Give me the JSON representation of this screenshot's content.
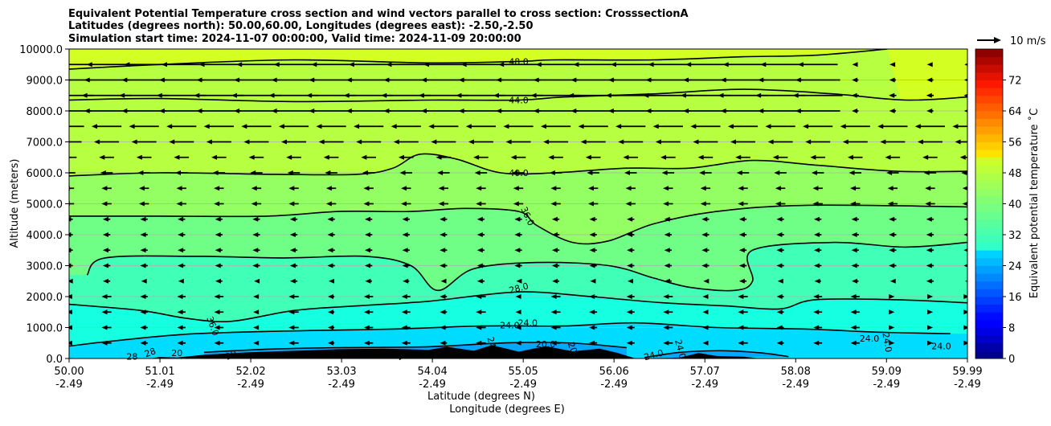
{
  "chart_data": {
    "type": "contour",
    "title": [
      "Equivalent Potential Temperature cross section and wind vectors parallel to cross section: CrosssectionA",
      "Latitudes (degrees north): 50.00,60.00, Longitudes (degrees east): -2.50,-2.50",
      "Simulation start time: 2024-11-07 00:00:00, Valid time: 2024-11-09 20:00:00"
    ],
    "xlabel": "Latitude (degrees N)",
    "xlabel2": "Longitude (degrees E)",
    "ylabel": "Altitude (meters)",
    "xlim": [
      50.0,
      59.99
    ],
    "ylim": [
      0,
      10000
    ],
    "x_ticks": [
      {
        "lat": "50.00",
        "lon": "-2.49",
        "v": 50.0
      },
      {
        "lat": "51.01",
        "lon": "-2.49",
        "v": 51.01
      },
      {
        "lat": "52.02",
        "lon": "-2.49",
        "v": 52.02
      },
      {
        "lat": "53.03",
        "lon": "-2.49",
        "v": 53.03
      },
      {
        "lat": "54.04",
        "lon": "-2.49",
        "v": 54.04
      },
      {
        "lat": "55.05",
        "lon": "-2.49",
        "v": 55.05
      },
      {
        "lat": "56.06",
        "lon": "-2.49",
        "v": 56.06
      },
      {
        "lat": "57.07",
        "lon": "-2.49",
        "v": 57.07
      },
      {
        "lat": "58.08",
        "lon": "-2.49",
        "v": 58.08
      },
      {
        "lat": "59.09",
        "lon": "-2.49",
        "v": 59.09
      },
      {
        "lat": "59.99",
        "lon": "-2.49",
        "v": 59.99
      }
    ],
    "y_ticks": [
      {
        "label": "0.0",
        "v": 0
      },
      {
        "label": "1000.0",
        "v": 1000
      },
      {
        "label": "2000.0",
        "v": 2000
      },
      {
        "label": "3000.0",
        "v": 3000
      },
      {
        "label": "4000.0",
        "v": 4000
      },
      {
        "label": "5000.0",
        "v": 5000
      },
      {
        "label": "6000.0",
        "v": 6000
      },
      {
        "label": "7000.0",
        "v": 7000
      },
      {
        "label": "8000.0",
        "v": 8000
      },
      {
        "label": "9000.0",
        "v": 9000
      },
      {
        "label": "10000.0",
        "v": 10000
      }
    ],
    "grid": "horizontal",
    "colorbar": {
      "label": "Equivalent potential temperature ˚C",
      "range": [
        0,
        80
      ],
      "ticks": [
        {
          "label": "0",
          "v": 0
        },
        {
          "label": "8",
          "v": 8
        },
        {
          "label": "16",
          "v": 16
        },
        {
          "label": "24",
          "v": 24
        },
        {
          "label": "32",
          "v": 32
        },
        {
          "label": "40",
          "v": 40
        },
        {
          "label": "48",
          "v": 48
        },
        {
          "label": "56",
          "v": 56
        },
        {
          "label": "64",
          "v": 64
        },
        {
          "label": "72",
          "v": 72
        }
      ]
    },
    "quiver_key": {
      "label": "10 m/s",
      "speed": 10
    },
    "contour_lines": [
      {
        "level": 48,
        "points": [
          [
            50.0,
            9350
          ],
          [
            51.0,
            9500
          ],
          [
            52.5,
            9650
          ],
          [
            54.0,
            9550
          ],
          [
            55.0,
            9600
          ],
          [
            55.4,
            9650
          ],
          [
            56.5,
            9650
          ],
          [
            57.5,
            9750
          ],
          [
            58.3,
            9800
          ],
          [
            59.1,
            10000
          ]
        ]
      },
      {
        "level": 44,
        "points": [
          [
            50.0,
            8350
          ],
          [
            51.0,
            8400
          ],
          [
            52.5,
            8300
          ],
          [
            54.0,
            8350
          ],
          [
            55.0,
            8350
          ],
          [
            55.5,
            8450
          ],
          [
            56.5,
            8550
          ],
          [
            57.5,
            8700
          ],
          [
            58.5,
            8550
          ],
          [
            59.3,
            8350
          ],
          [
            59.99,
            8450
          ]
        ]
      },
      {
        "level": 40,
        "points": [
          [
            50.0,
            5900
          ],
          [
            51.0,
            6000
          ],
          [
            52.3,
            5950
          ],
          [
            53.2,
            5950
          ],
          [
            53.6,
            6150
          ],
          [
            53.9,
            6600
          ],
          [
            54.3,
            6450
          ],
          [
            54.8,
            6000
          ],
          [
            55.4,
            6000
          ],
          [
            56.2,
            6150
          ],
          [
            56.9,
            6150
          ],
          [
            57.6,
            6400
          ],
          [
            58.3,
            6250
          ],
          [
            59.2,
            6050
          ],
          [
            59.99,
            6050
          ]
        ]
      },
      {
        "level": 36,
        "points": [
          [
            50.0,
            4600
          ],
          [
            51.0,
            4600
          ],
          [
            52.2,
            4600
          ],
          [
            53.0,
            4750
          ],
          [
            53.8,
            4750
          ],
          [
            54.4,
            4850
          ],
          [
            55.0,
            4750
          ],
          [
            55.2,
            4300
          ],
          [
            55.6,
            3750
          ],
          [
            56.0,
            3800
          ],
          [
            56.5,
            4350
          ],
          [
            57.2,
            4750
          ],
          [
            58.2,
            4950
          ],
          [
            59.99,
            4900
          ]
        ]
      },
      {
        "level": 32,
        "points": [
          [
            50.2,
            2700
          ],
          [
            50.4,
            3250
          ],
          [
            51.4,
            3300
          ],
          [
            52.4,
            3250
          ],
          [
            53.3,
            3300
          ],
          [
            53.8,
            3000
          ],
          [
            54.1,
            2200
          ],
          [
            54.5,
            2900
          ],
          [
            55.2,
            3100
          ],
          [
            56.0,
            3000
          ],
          [
            56.5,
            2600
          ],
          [
            56.9,
            2300
          ],
          [
            57.4,
            2200
          ],
          [
            57.6,
            2500
          ],
          [
            57.6,
            3500
          ],
          [
            58.5,
            3750
          ],
          [
            59.3,
            3600
          ],
          [
            59.99,
            3750
          ]
        ]
      },
      {
        "level": 28,
        "points": [
          [
            50.0,
            1750
          ],
          [
            50.8,
            1550
          ],
          [
            51.3,
            1300
          ],
          [
            51.8,
            1200
          ],
          [
            52.5,
            1550
          ],
          [
            53.2,
            1700
          ],
          [
            54.0,
            1850
          ],
          [
            55.0,
            2150
          ],
          [
            55.8,
            2000
          ],
          [
            56.6,
            1800
          ],
          [
            57.3,
            1700
          ],
          [
            57.9,
            1600
          ],
          [
            58.3,
            1900
          ],
          [
            59.2,
            1900
          ],
          [
            59.99,
            1800
          ]
        ]
      },
      {
        "level": 24,
        "points": [
          [
            50.0,
            400
          ],
          [
            50.6,
            600
          ],
          [
            51.4,
            800
          ],
          [
            52.6,
            900
          ],
          [
            53.6,
            950
          ],
          [
            54.6,
            1050
          ],
          [
            55.5,
            1050
          ],
          [
            56.3,
            1150
          ],
          [
            57.2,
            1000
          ],
          [
            58.2,
            950
          ],
          [
            59.0,
            850
          ],
          [
            59.8,
            800
          ]
        ]
      },
      {
        "level": 20,
        "points": [
          [
            51.5,
            200
          ],
          [
            52.2,
            300
          ],
          [
            53.0,
            350
          ],
          [
            54.0,
            380
          ],
          [
            54.8,
            500
          ],
          [
            55.3,
            520
          ],
          [
            55.7,
            480
          ],
          [
            56.2,
            350
          ]
        ]
      },
      {
        "level": 24,
        "points": [
          [
            56.4,
            30
          ],
          [
            56.8,
            200
          ],
          [
            57.3,
            250
          ],
          [
            57.7,
            180
          ],
          [
            58.0,
            60
          ]
        ]
      }
    ],
    "contour_labels": [
      {
        "text": "48.0",
        "x": 55.0,
        "y": 9600
      },
      {
        "text": "44.0",
        "x": 55.0,
        "y": 8350
      },
      {
        "text": "40.0",
        "x": 55.0,
        "y": 6000
      },
      {
        "text": "36.0",
        "x": 55.1,
        "y": 4600,
        "angle": 65
      },
      {
        "text": "28.0",
        "x": 55.0,
        "y": 2280,
        "angle": -15
      },
      {
        "text": "24.0",
        "x": 54.9,
        "y": 1080
      },
      {
        "text": "24.0",
        "x": 55.1,
        "y": 1150
      },
      {
        "text": "20.0",
        "x": 55.3,
        "y": 470
      },
      {
        "text": "24.0",
        "x": 58.9,
        "y": 650
      },
      {
        "text": "24.0",
        "x": 59.1,
        "y": 520,
        "angle": 80
      },
      {
        "text": "24.0",
        "x": 59.7,
        "y": 400
      },
      {
        "text": "24.0",
        "x": 56.5,
        "y": 120,
        "angle": -15
      },
      {
        "text": "24.0",
        "x": 56.8,
        "y": 300,
        "angle": 75
      },
      {
        "text": "36.0",
        "x": 51.6,
        "y": 1050,
        "angle": 70
      },
      {
        "text": "28",
        "x": 50.7,
        "y": 60
      },
      {
        "text": "28",
        "x": 50.9,
        "y": 200,
        "angle": -20
      },
      {
        "text": "20",
        "x": 51.2,
        "y": 180
      },
      {
        "text": "20",
        "x": 51.8,
        "y": 120,
        "angle": -25
      },
      {
        "text": "20",
        "x": 53.7,
        "y": 120,
        "angle": -35
      },
      {
        "text": "20",
        "x": 55.6,
        "y": 350,
        "angle": 70
      },
      {
        "text": "24",
        "x": 54.7,
        "y": 520,
        "angle": 75
      }
    ],
    "terrain": [
      [
        50.9,
        0
      ],
      [
        51.0,
        50
      ],
      [
        51.2,
        30
      ],
      [
        51.5,
        120
      ],
      [
        52.0,
        200
      ],
      [
        52.5,
        250
      ],
      [
        53.0,
        300
      ],
      [
        53.5,
        320
      ],
      [
        54.0,
        280
      ],
      [
        54.2,
        380
      ],
      [
        54.5,
        250
      ],
      [
        54.7,
        430
      ],
      [
        55.0,
        220
      ],
      [
        55.3,
        400
      ],
      [
        55.6,
        230
      ],
      [
        55.9,
        320
      ],
      [
        56.1,
        180
      ],
      [
        56.3,
        0
      ],
      [
        56.8,
        30
      ],
      [
        57.0,
        180
      ],
      [
        57.2,
        80
      ],
      [
        57.5,
        60
      ],
      [
        57.7,
        0
      ]
    ],
    "wind_u_by_altitude": [
      {
        "z": 9500,
        "u": -8
      },
      {
        "z": 9000,
        "u": -9
      },
      {
        "z": 8500,
        "u": -10
      },
      {
        "z": 8000,
        "u": -9
      },
      {
        "z": 7500,
        "u": -6
      },
      {
        "z": 7000,
        "u": -5
      },
      {
        "z": 6500,
        "u": -3
      },
      {
        "z": 6000,
        "u": -2.5
      },
      {
        "z": 5500,
        "u": -2
      },
      {
        "z": 5000,
        "u": -2
      },
      {
        "z": 4500,
        "u": -1.5
      },
      {
        "z": 4000,
        "u": -1.5
      },
      {
        "z": 3500,
        "u": -1.5
      },
      {
        "z": 3000,
        "u": -1.5
      },
      {
        "z": 2500,
        "u": -1.5
      },
      {
        "z": 2000,
        "u": -2
      },
      {
        "z": 1500,
        "u": -2
      },
      {
        "z": 1000,
        "u": -2
      },
      {
        "z": 500,
        "u": -2
      }
    ],
    "filled_bands": [
      {
        "lo": 0,
        "hi": 20,
        "color": "#0080ff"
      },
      {
        "lo": 20,
        "hi": 24,
        "color": "#00a8ff"
      },
      {
        "lo": 24,
        "hi": 28,
        "color": "#00dcff"
      },
      {
        "lo": 28,
        "hi": 32,
        "color": "#16ffe1"
      },
      {
        "lo": 32,
        "hi": 36,
        "color": "#40ffb7"
      },
      {
        "lo": 36,
        "hi": 40,
        "color": "#70ff86"
      },
      {
        "lo": 40,
        "hi": 44,
        "color": "#94ff63"
      },
      {
        "lo": 44,
        "hi": 48,
        "color": "#b6ff41"
      },
      {
        "lo": 48,
        "hi": 52,
        "color": "#d4ff22"
      }
    ]
  }
}
